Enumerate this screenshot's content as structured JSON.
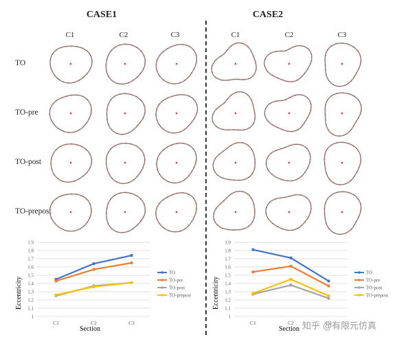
{
  "cases": [
    {
      "title": "CASE1",
      "columns": [
        "C1",
        "C2",
        "C3"
      ],
      "rows": [
        "TO",
        "TO-pre",
        "TO-post",
        "TO-prepost"
      ],
      "chart": {
        "xlabel": "Section",
        "ylabel": "Eccentricity"
      }
    },
    {
      "title": "CASE2",
      "columns": [
        "C1",
        "C2",
        "C3"
      ],
      "chart": {
        "xlabel": "Section",
        "ylabel": "Eccentricity"
      }
    }
  ],
  "chart_data": [
    {
      "type": "line",
      "categories": [
        "C1",
        "C2",
        "C3"
      ],
      "xlabel": "Section",
      "ylabel": "Eccentricity",
      "ylim": [
        1,
        1.9
      ],
      "yticks": [
        "1",
        "1.1",
        "1.2",
        "1.3",
        "1.4",
        "1.5",
        "1.6",
        "1.7",
        "1.8",
        "1.9"
      ],
      "legend": "right",
      "series": [
        {
          "name": "TO",
          "color": "#4472C4",
          "values": [
            1.45,
            1.64,
            1.74
          ]
        },
        {
          "name": "TO-pre",
          "color": "#ED7D31",
          "values": [
            1.43,
            1.57,
            1.65
          ]
        },
        {
          "name": "TO-post",
          "color": "#A5A5A5",
          "values": [
            1.25,
            1.37,
            1.41
          ]
        },
        {
          "name": "TO-prepost",
          "color": "#FFC000",
          "values": [
            1.26,
            1.36,
            1.41
          ]
        }
      ]
    },
    {
      "type": "line",
      "categories": [
        "C1",
        "C2",
        "C3"
      ],
      "xlabel": "Section",
      "ylabel": "Eccentricity",
      "ylim": [
        1,
        1.9
      ],
      "yticks": [
        "1",
        "1.1",
        "1.2",
        "1.3",
        "1.4",
        "1.5",
        "1.6",
        "1.7",
        "1.8",
        "1.9"
      ],
      "legend": "right",
      "series": [
        {
          "name": "TO",
          "color": "#4472C4",
          "values": [
            1.81,
            1.71,
            1.43
          ]
        },
        {
          "name": "TO-pre",
          "color": "#ED7D31",
          "values": [
            1.54,
            1.61,
            1.37
          ]
        },
        {
          "name": "TO-post",
          "color": "#A5A5A5",
          "values": [
            1.27,
            1.38,
            1.22
          ]
        },
        {
          "name": "TO-prepost",
          "color": "#FFC000",
          "values": [
            1.28,
            1.45,
            1.25
          ]
        }
      ]
    }
  ],
  "watermark": "知乎 @有限元仿真"
}
